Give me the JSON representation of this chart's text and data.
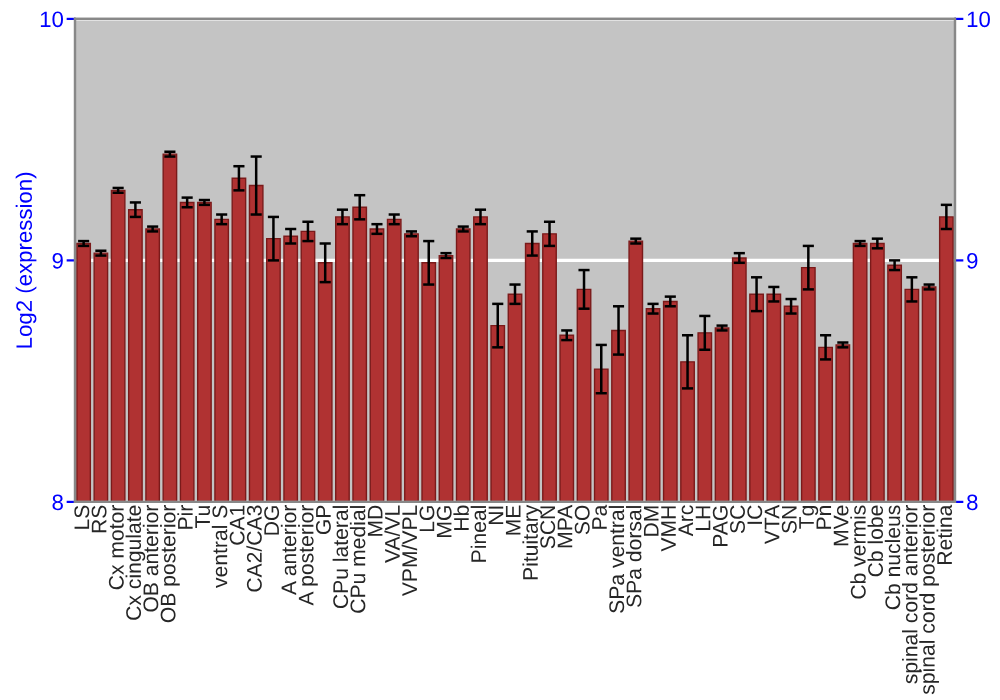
{
  "chart_data": {
    "type": "bar",
    "ylabel": "Log2 (expression)",
    "categories": [
      "LS",
      "RS",
      "Cx motor",
      "Cx cingulate",
      "OB anterior",
      "OB posterior",
      "Pir",
      "Tu",
      "ventral S",
      "CA1",
      "CA2/CA3",
      "DG",
      "A anterior",
      "A posterior",
      "GP",
      "CPu lateral",
      "CPu medial",
      "MD",
      "VA/VL",
      "VPM/VPL",
      "LG",
      "MG",
      "Hb",
      "Pineal",
      "NI",
      "ME",
      "Pituitary",
      "SCN",
      "MPA",
      "SO",
      "Pa",
      "SPa ventral",
      "SPa dorsal",
      "DM",
      "VMH",
      "Arc",
      "LH",
      "PAG",
      "SC",
      "IC",
      "VTA",
      "SN",
      "Tg",
      "Pn",
      "MVe",
      "Cb vermis",
      "Cb lobe",
      "Cb nucleus",
      "spinal cord anterior",
      "spinal cord posterior",
      "Retina"
    ],
    "values": [
      9.07,
      9.03,
      9.29,
      9.21,
      9.13,
      9.44,
      9.24,
      9.24,
      9.17,
      9.34,
      9.31,
      9.09,
      9.1,
      9.12,
      8.99,
      9.18,
      9.22,
      9.13,
      9.17,
      9.11,
      8.99,
      9.02,
      9.13,
      9.18,
      8.73,
      8.86,
      9.07,
      9.11,
      8.69,
      8.88,
      8.55,
      8.71,
      9.08,
      8.8,
      8.83,
      8.58,
      8.7,
      8.72,
      9.01,
      8.86,
      8.86,
      8.81,
      8.97,
      8.64,
      8.65,
      9.07,
      9.07,
      8.98,
      8.88,
      8.89,
      9.18
    ],
    "errors": [
      0.01,
      0.01,
      0.01,
      0.03,
      0.01,
      0.01,
      0.02,
      0.01,
      0.02,
      0.05,
      0.12,
      0.09,
      0.03,
      0.04,
      0.08,
      0.03,
      0.05,
      0.02,
      0.02,
      0.01,
      0.09,
      0.01,
      0.01,
      0.03,
      0.09,
      0.04,
      0.05,
      0.05,
      0.02,
      0.08,
      0.1,
      0.1,
      0.01,
      0.02,
      0.02,
      0.11,
      0.07,
      0.01,
      0.02,
      0.07,
      0.03,
      0.03,
      0.09,
      0.05,
      0.01,
      0.01,
      0.02,
      0.02,
      0.05,
      0.01,
      0.05
    ],
    "color": "#b03232",
    "ylim": [
      8,
      10
    ],
    "yticks": [
      8,
      9,
      10
    ],
    "y2lim": [
      8,
      10
    ],
    "y2ticks": [
      8,
      9,
      10
    ],
    "grid": "y"
  }
}
